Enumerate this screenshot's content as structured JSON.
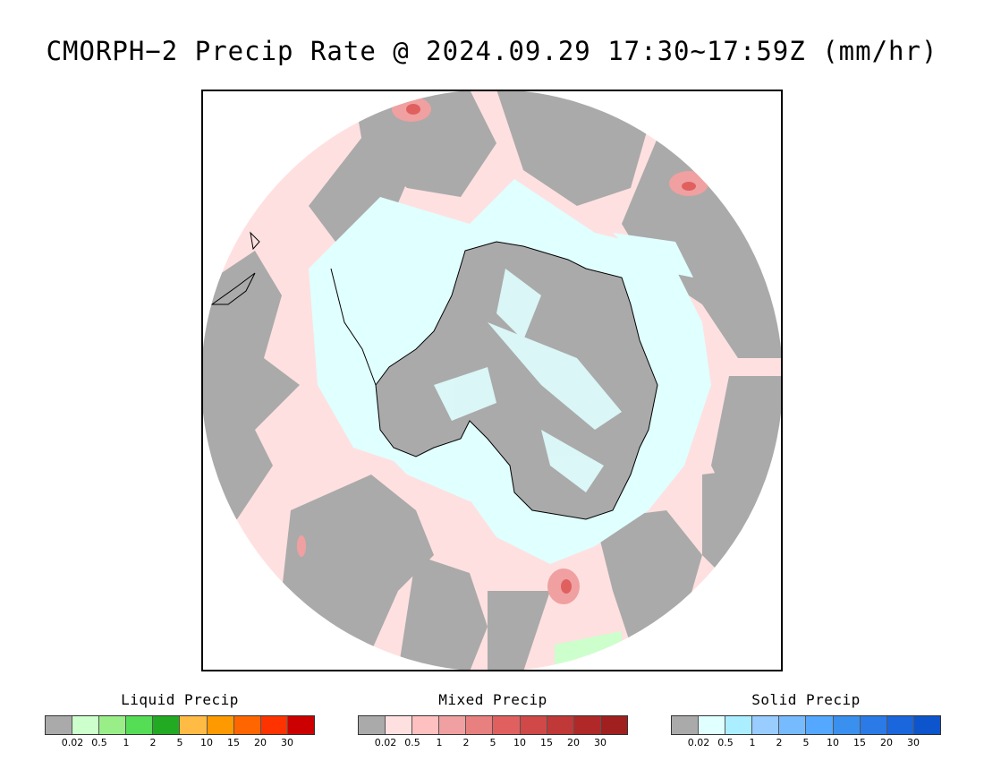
{
  "title": "CMORPH−2 Precip Rate @ 2024.09.29 17:30~17:59Z (mm/hr)",
  "colors": {
    "no_precip_gray": "#aaaaaa",
    "frame": "#000000",
    "coastline": "#000000"
  },
  "legends": [
    {
      "title": "Liquid Precip",
      "swatches": [
        "#aaaaaa",
        "#ccffcc",
        "#99ee88",
        "#55dd55",
        "#22aa22",
        "#ffbb44",
        "#ff9900",
        "#ff6600",
        "#ff3300",
        "#cc0000"
      ],
      "ticks": [
        "0.02",
        "0.5",
        "1",
        "2",
        "5",
        "10",
        "15",
        "20",
        "30"
      ]
    },
    {
      "title": "Mixed Precip",
      "swatches": [
        "#aaaaaa",
        "#ffe0e0",
        "#ffc0c0",
        "#f0a0a0",
        "#e88080",
        "#e06060",
        "#d04848",
        "#c03838",
        "#b02828",
        "#a02020"
      ],
      "ticks": [
        "0.02",
        "0.5",
        "1",
        "2",
        "5",
        "10",
        "15",
        "20",
        "30"
      ]
    },
    {
      "title": "Solid Precip",
      "swatches": [
        "#aaaaaa",
        "#e0ffff",
        "#aaeeff",
        "#99ccff",
        "#77bbff",
        "#55a8ff",
        "#3a90ee",
        "#2a7ae8",
        "#1a66dd",
        "#0d55cc"
      ],
      "ticks": [
        "0.02",
        "0.5",
        "1",
        "2",
        "5",
        "10",
        "15",
        "20",
        "30"
      ]
    }
  ]
}
